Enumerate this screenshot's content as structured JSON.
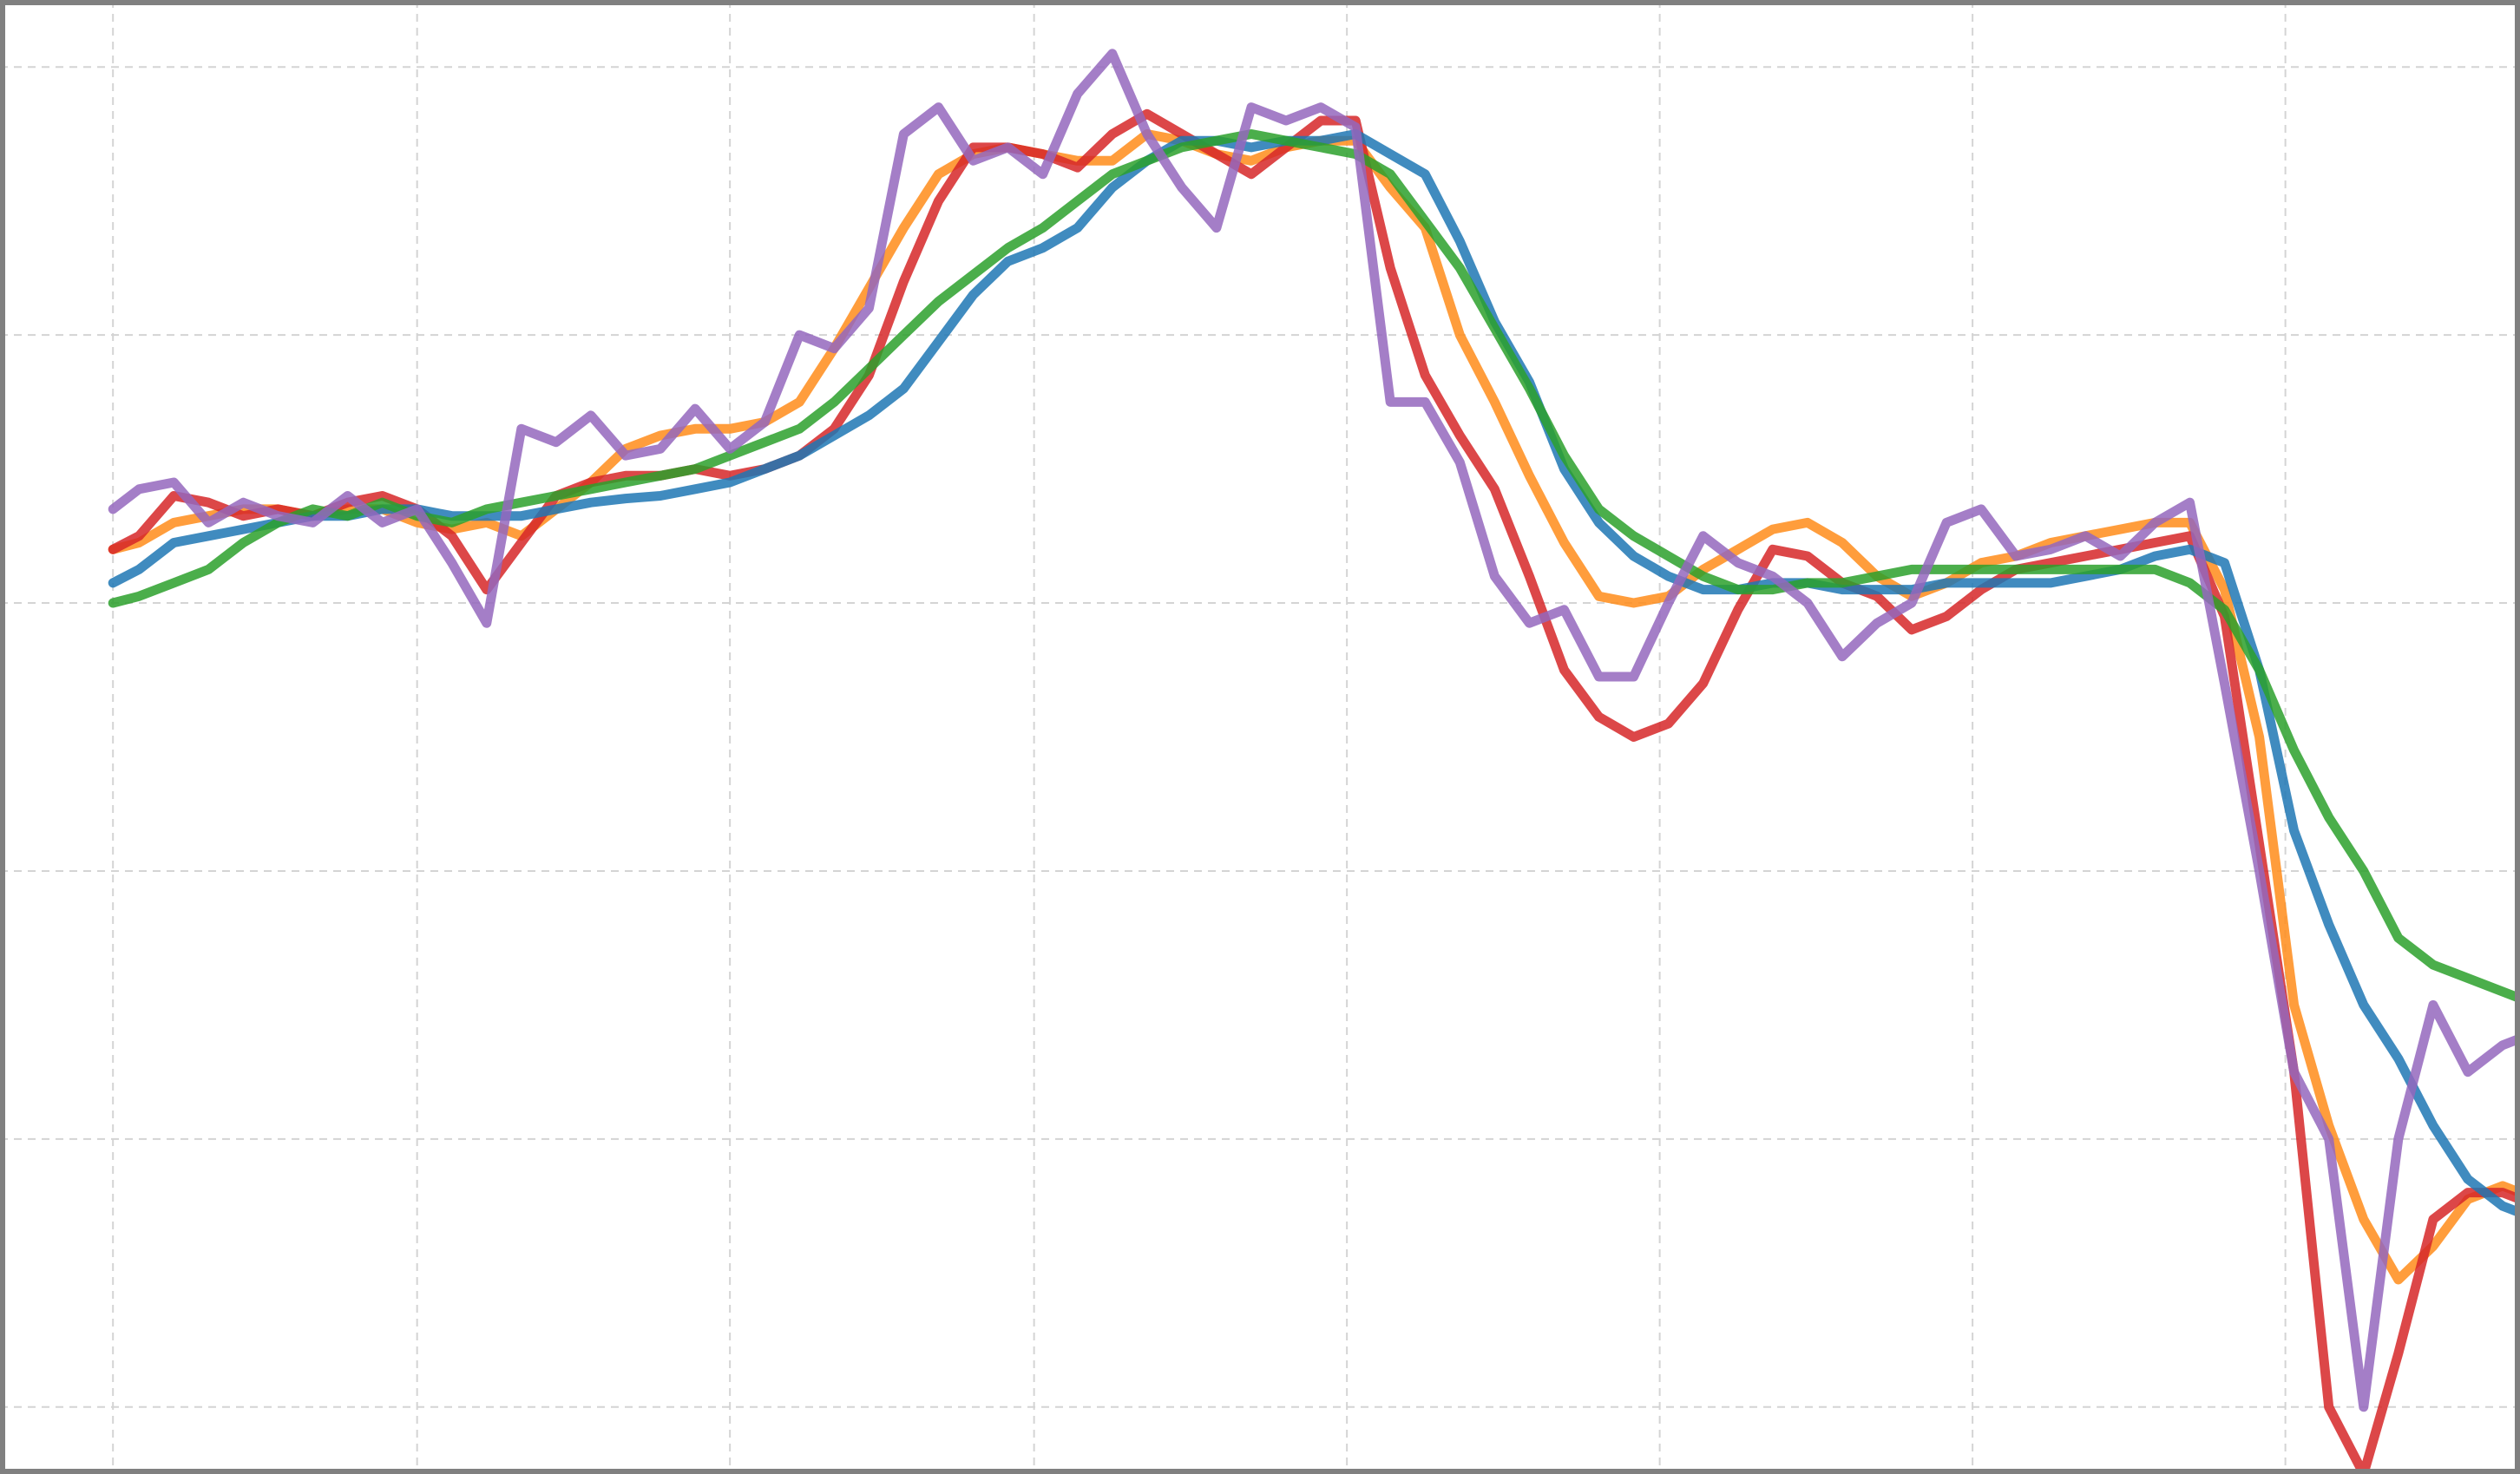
{
  "chart_data": {
    "type": "line",
    "title": "",
    "xlabel": "",
    "ylabel": "",
    "xlim": [
      0,
      145
    ],
    "ylim": [
      -0.6,
      0.5
    ],
    "grid": true,
    "legend": "none",
    "x_gridlines": [
      6.5,
      24,
      42,
      59.5,
      77.5,
      95.5,
      113.5,
      131.5,
      149
    ],
    "y_gridlines": [
      0.45,
      0.25,
      0.05,
      -0.15,
      -0.35,
      -0.55
    ],
    "x": [
      6.5,
      8,
      10,
      12,
      14,
      16,
      18,
      20,
      22,
      24,
      26,
      28,
      30,
      32,
      34,
      36,
      38,
      40,
      42,
      44,
      46,
      48,
      50,
      52,
      54,
      56,
      58,
      60,
      62,
      64,
      66,
      68,
      70,
      72,
      74,
      76,
      78,
      80,
      82,
      84,
      86,
      88,
      90,
      92,
      94,
      96,
      98,
      100,
      102,
      104,
      106,
      108,
      110,
      112,
      114,
      116,
      118,
      120,
      122,
      124,
      126,
      128,
      130,
      132,
      134,
      136,
      138,
      140,
      142,
      144,
      146,
      148,
      150
    ],
    "series": [
      {
        "color": "#ff8c1a",
        "values": [
          0.09,
          0.095,
          0.11,
          0.115,
          0.12,
          0.12,
          0.115,
          0.12,
          0.12,
          0.11,
          0.105,
          0.11,
          0.1,
          0.12,
          0.14,
          0.165,
          0.175,
          0.18,
          0.18,
          0.185,
          0.2,
          0.24,
          0.285,
          0.33,
          0.37,
          0.385,
          0.39,
          0.385,
          0.38,
          0.38,
          0.4,
          0.395,
          0.385,
          0.38,
          0.39,
          0.395,
          0.395,
          0.36,
          0.33,
          0.25,
          0.2,
          0.145,
          0.095,
          0.055,
          0.05,
          0.055,
          0.075,
          0.09,
          0.105,
          0.11,
          0.095,
          0.07,
          0.055,
          0.065,
          0.08,
          0.085,
          0.095,
          0.1,
          0.105,
          0.11,
          0.11,
          0.06,
          -0.05,
          -0.25,
          -0.34,
          -0.41,
          -0.455,
          -0.43,
          -0.395,
          -0.385,
          -0.395,
          -0.4,
          -0.4
        ]
      },
      {
        "color": "#d62728",
        "values": [
          0.09,
          0.1,
          0.13,
          0.125,
          0.115,
          0.12,
          0.115,
          0.125,
          0.13,
          0.12,
          0.1,
          0.06,
          0.095,
          0.13,
          0.14,
          0.145,
          0.145,
          0.15,
          0.145,
          0.15,
          0.16,
          0.18,
          0.22,
          0.29,
          0.35,
          0.39,
          0.39,
          0.385,
          0.375,
          0.4,
          0.415,
          0.4,
          0.385,
          0.37,
          0.39,
          0.41,
          0.41,
          0.3,
          0.22,
          0.175,
          0.135,
          0.07,
          0.0,
          -0.035,
          -0.05,
          -0.04,
          -0.01,
          0.045,
          0.09,
          0.085,
          0.065,
          0.055,
          0.03,
          0.04,
          0.06,
          0.075,
          0.08,
          0.085,
          0.09,
          0.095,
          0.1,
          0.04,
          -0.13,
          -0.3,
          -0.55,
          -0.6,
          -0.51,
          -0.41,
          -0.39,
          -0.39,
          -0.4,
          -0.41,
          -0.42
        ]
      },
      {
        "color": "#1f77b4",
        "values": [
          0.065,
          0.075,
          0.095,
          0.1,
          0.105,
          0.11,
          0.115,
          0.115,
          0.12,
          0.12,
          0.115,
          0.115,
          0.115,
          0.12,
          0.125,
          0.128,
          0.13,
          0.135,
          0.14,
          0.15,
          0.16,
          0.175,
          0.19,
          0.21,
          0.245,
          0.28,
          0.305,
          0.315,
          0.33,
          0.36,
          0.38,
          0.395,
          0.395,
          0.39,
          0.395,
          0.395,
          0.4,
          0.385,
          0.37,
          0.32,
          0.26,
          0.215,
          0.15,
          0.11,
          0.085,
          0.07,
          0.06,
          0.06,
          0.065,
          0.065,
          0.06,
          0.06,
          0.06,
          0.065,
          0.065,
          0.065,
          0.065,
          0.07,
          0.075,
          0.085,
          0.09,
          0.08,
          0.0,
          -0.12,
          -0.19,
          -0.25,
          -0.29,
          -0.34,
          -0.38,
          -0.4,
          -0.41,
          -0.415,
          -0.42
        ]
      },
      {
        "color": "#2ca02c",
        "values": [
          0.05,
          0.055,
          0.065,
          0.075,
          0.095,
          0.11,
          0.12,
          0.115,
          0.125,
          0.115,
          0.11,
          0.12,
          0.125,
          0.13,
          0.135,
          0.14,
          0.145,
          0.15,
          0.16,
          0.17,
          0.18,
          0.2,
          0.225,
          0.25,
          0.275,
          0.295,
          0.315,
          0.33,
          0.35,
          0.37,
          0.38,
          0.39,
          0.395,
          0.4,
          0.395,
          0.39,
          0.385,
          0.37,
          0.335,
          0.3,
          0.255,
          0.21,
          0.16,
          0.12,
          0.1,
          0.085,
          0.07,
          0.06,
          0.06,
          0.065,
          0.065,
          0.07,
          0.075,
          0.075,
          0.075,
          0.075,
          0.075,
          0.075,
          0.075,
          0.075,
          0.065,
          0.045,
          -0.0,
          -0.06,
          -0.11,
          -0.15,
          -0.2,
          -0.22,
          -0.23,
          -0.24,
          -0.25,
          -0.27,
          -0.27
        ]
      },
      {
        "color": "#9467bd",
        "values": [
          0.12,
          0.135,
          0.14,
          0.11,
          0.125,
          0.115,
          0.11,
          0.13,
          0.11,
          0.12,
          0.08,
          0.035,
          0.18,
          0.17,
          0.19,
          0.16,
          0.165,
          0.195,
          0.165,
          0.185,
          0.25,
          0.24,
          0.27,
          0.4,
          0.42,
          0.38,
          0.39,
          0.37,
          0.43,
          0.46,
          0.4,
          0.36,
          0.33,
          0.42,
          0.41,
          0.42,
          0.405,
          0.2,
          0.2,
          0.155,
          0.07,
          0.035,
          0.045,
          -0.005,
          -0.005,
          0.05,
          0.1,
          0.08,
          0.07,
          0.05,
          0.01,
          0.035,
          0.05,
          0.11,
          0.12,
          0.085,
          0.09,
          0.1,
          0.085,
          0.11,
          0.125,
          -0.01,
          -0.15,
          -0.3,
          -0.35,
          -0.55,
          -0.35,
          -0.25,
          -0.3,
          -0.28,
          -0.27,
          -0.38,
          -0.39
        ]
      }
    ]
  }
}
